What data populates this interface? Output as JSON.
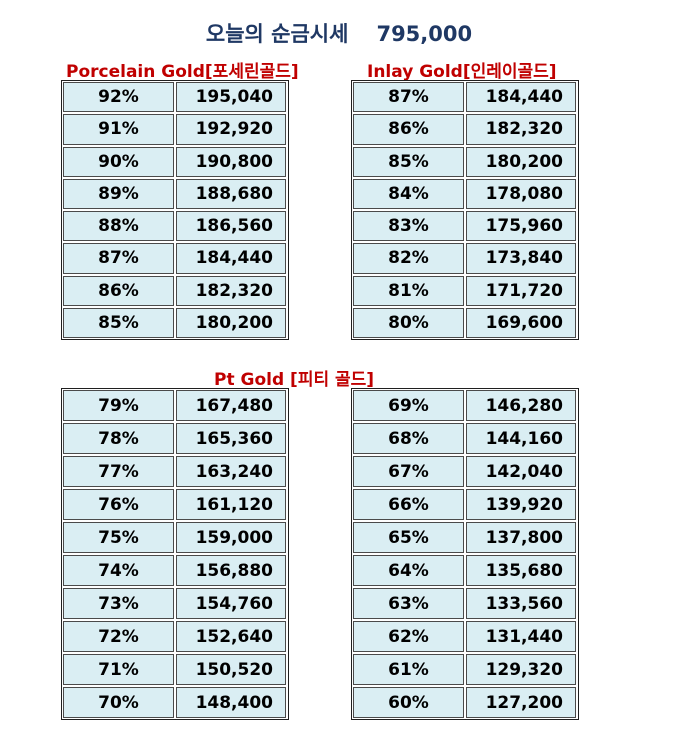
{
  "header": {
    "title": "오늘의 순금시세",
    "price": "795,000"
  },
  "porcelain": {
    "heading": "Porcelain Gold[포세린골드]",
    "rows": [
      {
        "pct": "92%",
        "value": "195,040"
      },
      {
        "pct": "91%",
        "value": "192,920"
      },
      {
        "pct": "90%",
        "value": "190,800"
      },
      {
        "pct": "89%",
        "value": "188,680"
      },
      {
        "pct": "88%",
        "value": "186,560"
      },
      {
        "pct": "87%",
        "value": "184,440"
      },
      {
        "pct": "86%",
        "value": "182,320"
      },
      {
        "pct": "85%",
        "value": "180,200"
      }
    ]
  },
  "inlay": {
    "heading": "Inlay Gold[인레이골드]",
    "rows": [
      {
        "pct": "87%",
        "value": "184,440"
      },
      {
        "pct": "86%",
        "value": "182,320"
      },
      {
        "pct": "85%",
        "value": "180,200"
      },
      {
        "pct": "84%",
        "value": "178,080"
      },
      {
        "pct": "83%",
        "value": "175,960"
      },
      {
        "pct": "82%",
        "value": "173,840"
      },
      {
        "pct": "81%",
        "value": "171,720"
      },
      {
        "pct": "80%",
        "value": "169,600"
      }
    ]
  },
  "pt": {
    "heading": "Pt Gold [피티 골드]",
    "left_rows": [
      {
        "pct": "79%",
        "value": "167,480"
      },
      {
        "pct": "78%",
        "value": "165,360"
      },
      {
        "pct": "77%",
        "value": "163,240"
      },
      {
        "pct": "76%",
        "value": "161,120"
      },
      {
        "pct": "75%",
        "value": "159,000"
      },
      {
        "pct": "74%",
        "value": "156,880"
      },
      {
        "pct": "73%",
        "value": "154,760"
      },
      {
        "pct": "72%",
        "value": "152,640"
      },
      {
        "pct": "71%",
        "value": "150,520"
      },
      {
        "pct": "70%",
        "value": "148,400"
      }
    ],
    "right_rows": [
      {
        "pct": "69%",
        "value": "146,280"
      },
      {
        "pct": "68%",
        "value": "144,160"
      },
      {
        "pct": "67%",
        "value": "142,040"
      },
      {
        "pct": "66%",
        "value": "139,920"
      },
      {
        "pct": "65%",
        "value": "137,800"
      },
      {
        "pct": "64%",
        "value": "135,680"
      },
      {
        "pct": "63%",
        "value": "133,560"
      },
      {
        "pct": "62%",
        "value": "131,440"
      },
      {
        "pct": "61%",
        "value": "129,320"
      },
      {
        "pct": "60%",
        "value": "127,200"
      }
    ]
  }
}
